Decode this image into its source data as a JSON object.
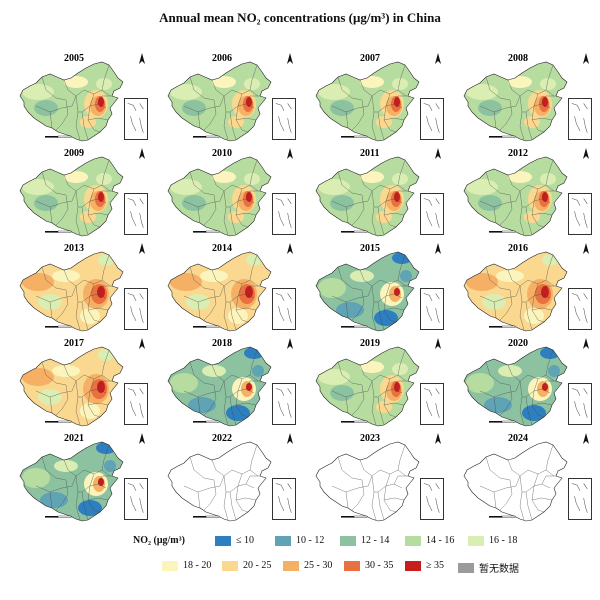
{
  "figure": {
    "title": "Annual mean NO₂ concentrations (μg/m³) in China"
  },
  "panels": [
    {
      "year": "2005",
      "style": "mid"
    },
    {
      "year": "2006",
      "style": "mid"
    },
    {
      "year": "2007",
      "style": "mid"
    },
    {
      "year": "2008",
      "style": "mid"
    },
    {
      "year": "2009",
      "style": "mid"
    },
    {
      "year": "2010",
      "style": "mid"
    },
    {
      "year": "2011",
      "style": "mid"
    },
    {
      "year": "2012",
      "style": "mid"
    },
    {
      "year": "2013",
      "style": "warm"
    },
    {
      "year": "2014",
      "style": "warm"
    },
    {
      "year": "2015",
      "style": "cool"
    },
    {
      "year": "2016",
      "style": "warm"
    },
    {
      "year": "2017",
      "style": "warm"
    },
    {
      "year": "2018",
      "style": "cool"
    },
    {
      "year": "2019",
      "style": "mid"
    },
    {
      "year": "2020",
      "style": "cool"
    },
    {
      "year": "2021",
      "style": "cool"
    },
    {
      "year": "2022",
      "style": "empty"
    },
    {
      "year": "2023",
      "style": "empty"
    },
    {
      "year": "2024",
      "style": "empty"
    }
  ],
  "legend": {
    "title": "NO₂ (μg/m³)",
    "items": [
      {
        "label": "≤ 10",
        "color": "#2e7fbf"
      },
      {
        "label": "10 - 12",
        "color": "#5fa3b4"
      },
      {
        "label": "12 - 14",
        "color": "#8cc2a0"
      },
      {
        "label": "14 - 16",
        "color": "#b7dca0"
      },
      {
        "label": "16 - 18",
        "color": "#daedb2"
      },
      {
        "label": "18 - 20",
        "color": "#fbf5bd"
      },
      {
        "label": "20 - 25",
        "color": "#fbd88f"
      },
      {
        "label": "25 - 30",
        "color": "#f6b065"
      },
      {
        "label": "30 - 35",
        "color": "#e9703f"
      },
      {
        "label": "≥ 35",
        "color": "#c81d1d"
      },
      {
        "label": "暂无数据",
        "color": "#9a9a9a"
      }
    ]
  }
}
